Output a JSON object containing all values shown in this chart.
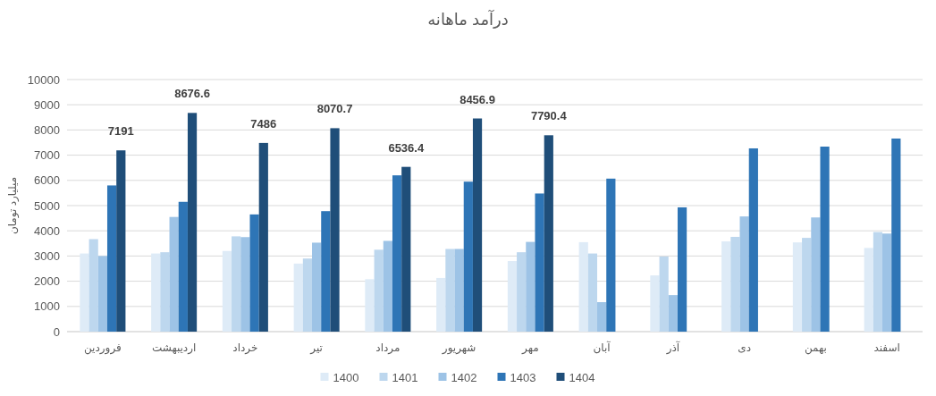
{
  "chart_data": {
    "type": "bar",
    "title": "درآمد ماهانه",
    "ylabel": "میلیارد تومان",
    "categories": [
      "فروردین",
      "اردیبهشت",
      "خرداد",
      "تیر",
      "مرداد",
      "شهریور",
      "مهر",
      "آبان",
      "آذر",
      "دی",
      "بهمن",
      "اسفند"
    ],
    "series": [
      {
        "name": "1400",
        "color": "#deebf7",
        "values": [
          3100,
          3100,
          3200,
          2700,
          2080,
          2130,
          2800,
          3550,
          2230,
          3580,
          3540,
          3320
        ]
      },
      {
        "name": "1401",
        "color": "#bdd7ee",
        "values": [
          3670,
          3150,
          3780,
          2900,
          3250,
          3280,
          3150,
          3100,
          2980,
          3760,
          3720,
          3950
        ]
      },
      {
        "name": "1402",
        "color": "#9dc3e6",
        "values": [
          3000,
          4550,
          3750,
          3530,
          3600,
          3280,
          3560,
          1170,
          1450,
          4570,
          4530,
          3890
        ]
      },
      {
        "name": "1403",
        "color": "#2e75b6",
        "values": [
          5800,
          5150,
          4650,
          4780,
          6200,
          5950,
          5480,
          6070,
          4930,
          7270,
          7340,
          7660
        ]
      },
      {
        "name": "1404",
        "color": "#1f4e79",
        "values": [
          7191,
          8676.6,
          7486,
          8070.7,
          6536.4,
          8456.9,
          7790.4,
          null,
          null,
          null,
          null,
          null
        ],
        "value_labels": [
          "7191",
          "8676.6",
          "7486",
          "8070.7",
          "6536.4",
          "8456.9",
          "7790.4",
          null,
          null,
          null,
          null,
          null
        ]
      }
    ],
    "ylim": [
      0,
      10000
    ],
    "yticks": [
      0,
      1000,
      2000,
      3000,
      4000,
      5000,
      6000,
      7000,
      8000,
      9000,
      10000
    ],
    "grid": "y",
    "legend": "bottom"
  }
}
